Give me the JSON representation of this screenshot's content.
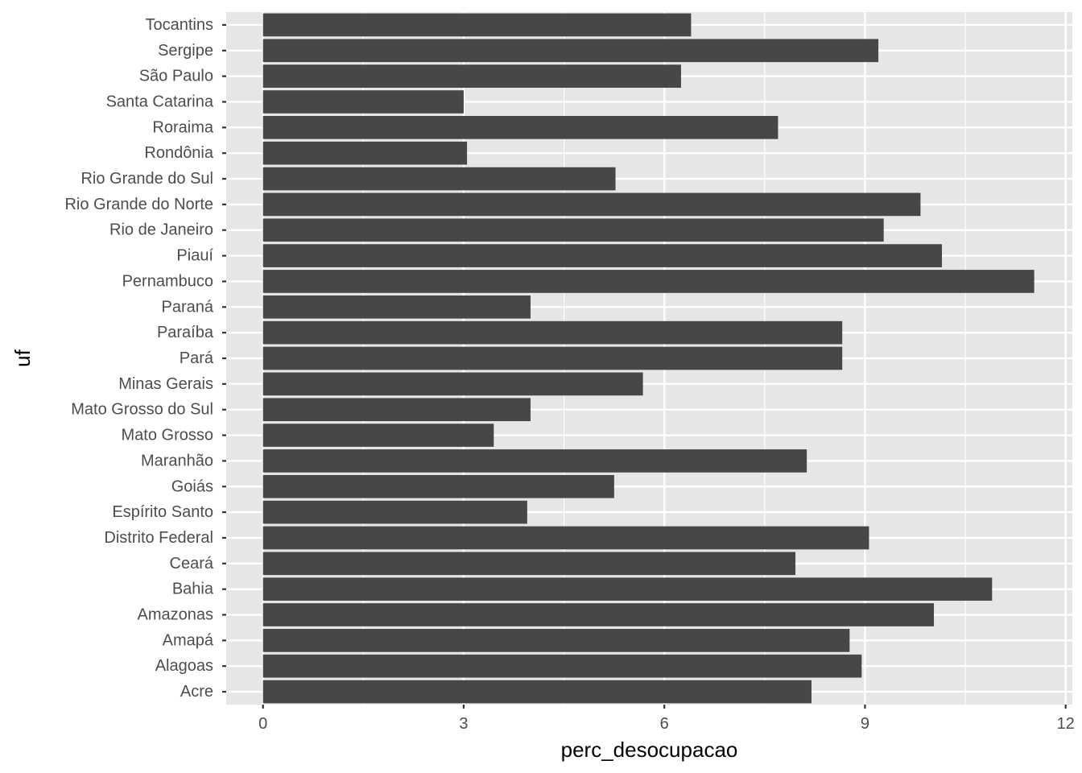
{
  "chart_data": {
    "type": "bar",
    "orientation": "horizontal",
    "xlabel": "perc_desocupacao",
    "ylabel": "uf",
    "xlim": [
      -0.55,
      12.1
    ],
    "x_ticks": [
      0,
      3,
      6,
      9,
      12
    ],
    "grid": true,
    "colors": {
      "bar": "#474747",
      "panel": "#e6e6e6",
      "grid": "#ffffff",
      "tick_text": "#4d4d4d",
      "tick_mark": "#333333"
    },
    "categories": [
      "Tocantins",
      "Sergipe",
      "São Paulo",
      "Santa Catarina",
      "Roraima",
      "Rondônia",
      "Rio Grande do Sul",
      "Rio Grande do Norte",
      "Rio de Janeiro",
      "Piauí",
      "Pernambuco",
      "Paraná",
      "Paraíba",
      "Pará",
      "Minas Gerais",
      "Mato Grosso do Sul",
      "Mato Grosso",
      "Maranhão",
      "Goiás",
      "Espírito Santo",
      "Distrito Federal",
      "Ceará",
      "Bahia",
      "Amazonas",
      "Amapá",
      "Alagoas",
      "Acre"
    ],
    "values": [
      6.4,
      9.2,
      6.25,
      3.0,
      7.7,
      3.05,
      5.27,
      9.83,
      9.28,
      10.15,
      11.53,
      4.0,
      8.66,
      8.66,
      5.68,
      4.0,
      3.45,
      8.13,
      5.25,
      3.95,
      9.06,
      7.96,
      10.9,
      10.03,
      8.77,
      8.95,
      8.2
    ]
  }
}
